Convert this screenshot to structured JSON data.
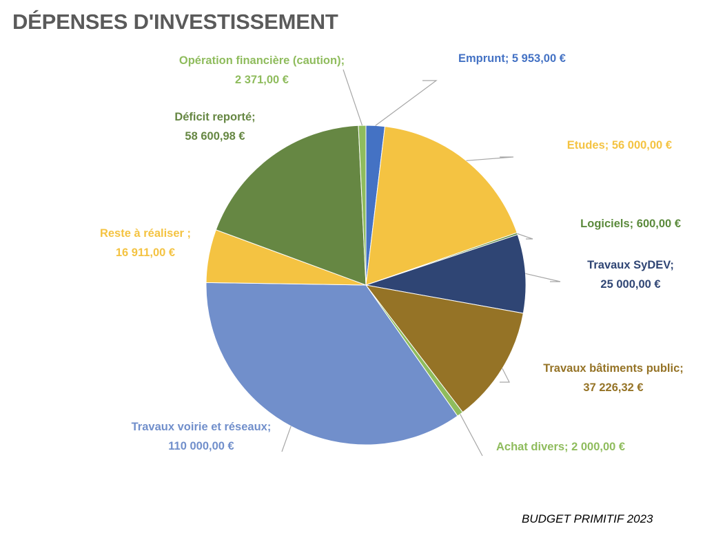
{
  "title": "DÉPENSES D'INVESTISSEMENT",
  "footer": "BUDGET PRIMITIF 2023",
  "chart_data": {
    "type": "pie",
    "title": "DÉPENSES D'INVESTISSEMENT",
    "slices": [
      {
        "category": "Emprunt;",
        "value": 5953.0,
        "label": "5 953,00  €",
        "color": "#4472c4"
      },
      {
        "category": "Etudes;",
        "value": 56000.0,
        "label": "56 000,00  €",
        "color": "#f4c342"
      },
      {
        "category": "Logiciels;",
        "value": 600.0,
        "label": "600,00  €",
        "color": "#5b8a3c"
      },
      {
        "category": "Travaux SyDEV;",
        "value": 25000.0,
        "label": "25 000,00  €",
        "color": "#2f4574"
      },
      {
        "category": "Travaux bâtiments public;",
        "value": 37226.32,
        "label": "37 226,32  €",
        "color": "#957326"
      },
      {
        "category": "Achat divers;",
        "value": 2000.0,
        "label": "2 000,00  €",
        "color": "#8fbc5d"
      },
      {
        "category": "Travaux voirie et réseaux;",
        "value": 110000.0,
        "label": "110 000,00  €",
        "color": "#718fcb"
      },
      {
        "category": "Reste à réaliser ;",
        "value": 16911.0,
        "label": "16 911,00  €",
        "color": "#f4c342"
      },
      {
        "category": "Déficit reporté;",
        "value": 58600.98,
        "label": "58 600,98  €",
        "color": "#668743"
      },
      {
        "category": "Opération financière (caution);",
        "value": 2371.0,
        "label": "2 371,00  €",
        "color": "#8fbc5d"
      }
    ]
  }
}
